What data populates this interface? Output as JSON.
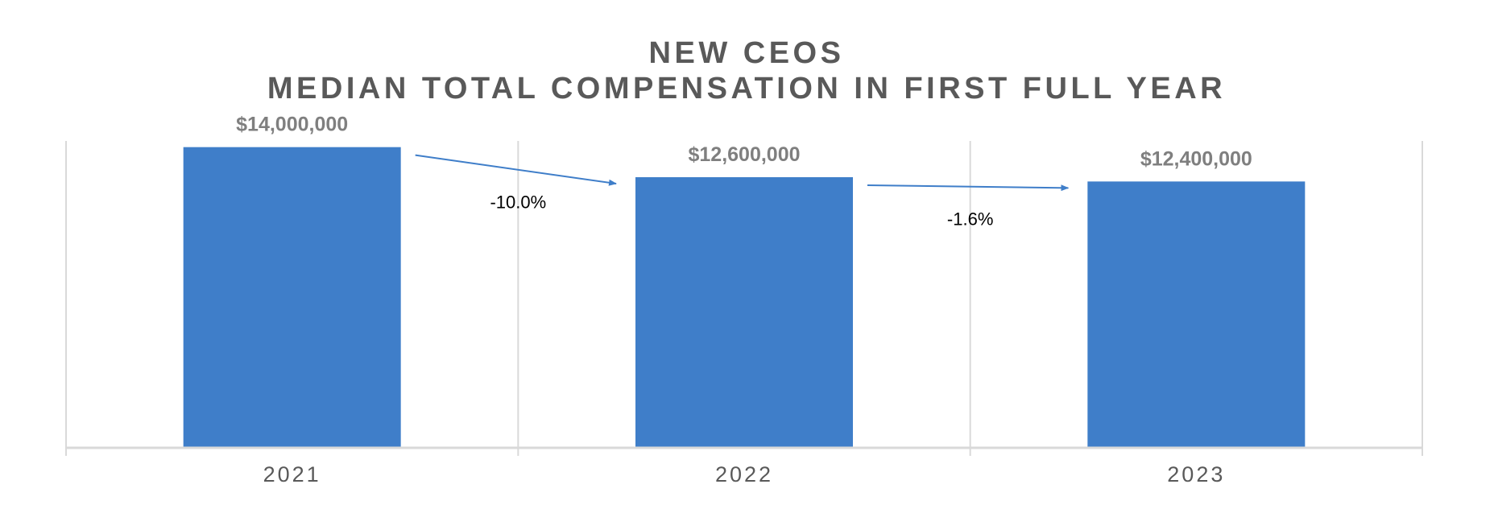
{
  "chart_data": {
    "type": "bar",
    "title_lines": [
      "NEW CEOS",
      "MEDIAN TOTAL COMPENSATION IN FIRST FULL YEAR"
    ],
    "xlabel": "",
    "ylabel": "",
    "categories": [
      "2021",
      "2022",
      "2023"
    ],
    "values": [
      14000000,
      12600000,
      12400000
    ],
    "value_labels": [
      "$14,000,000",
      "$12,600,000",
      "$12,400,000"
    ],
    "annotations": [
      {
        "from": "2021",
        "to": "2022",
        "text": "-10.0%"
      },
      {
        "from": "2022",
        "to": "2023",
        "text": "-1.6%"
      }
    ],
    "ylim": [
      0,
      15000000
    ],
    "bar_color": "#3f7ec9",
    "arrow_color": "#3f7ec9",
    "grid": "vertical",
    "legend": "none"
  }
}
